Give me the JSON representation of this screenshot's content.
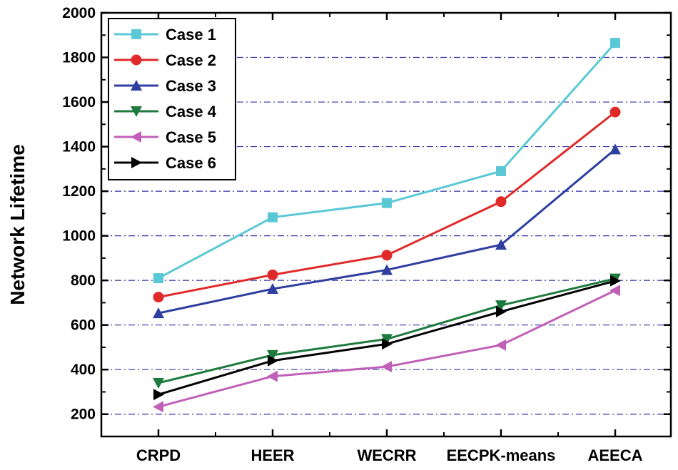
{
  "chart_data": {
    "type": "line",
    "title": "",
    "xlabel": "",
    "ylabel": "Network Lifetime",
    "ylim": [
      100,
      2000
    ],
    "yticks": [
      200,
      400,
      600,
      800,
      1000,
      1200,
      1400,
      1600,
      1800,
      2000
    ],
    "grid": "horizontal dash-dot",
    "legend_position": "top-left",
    "categories": [
      "CRPD",
      "HEER",
      "WECRR",
      "EECPK-means",
      "AEECA"
    ],
    "series": [
      {
        "name": "Case 1",
        "color": "#5BC8D6",
        "marker": "square",
        "values": [
          810,
          1083,
          1147,
          1290,
          1865
        ]
      },
      {
        "name": "Case 2",
        "color": "#E02A2A",
        "marker": "circle",
        "values": [
          725,
          825,
          913,
          1153,
          1555
        ]
      },
      {
        "name": "Case 3",
        "color": "#2E3FA0",
        "marker": "triangle-up",
        "values": [
          653,
          762,
          847,
          960,
          1388
        ]
      },
      {
        "name": "Case 4",
        "color": "#1E7A3C",
        "marker": "triangle-down",
        "values": [
          340,
          465,
          537,
          688,
          808
        ]
      },
      {
        "name": "Case 5",
        "color": "#C060B8",
        "marker": "triangle-left",
        "values": [
          233,
          370,
          413,
          510,
          755
        ]
      },
      {
        "name": "Case 6",
        "color": "#000000",
        "marker": "triangle-right",
        "values": [
          288,
          440,
          515,
          660,
          798
        ]
      }
    ]
  }
}
